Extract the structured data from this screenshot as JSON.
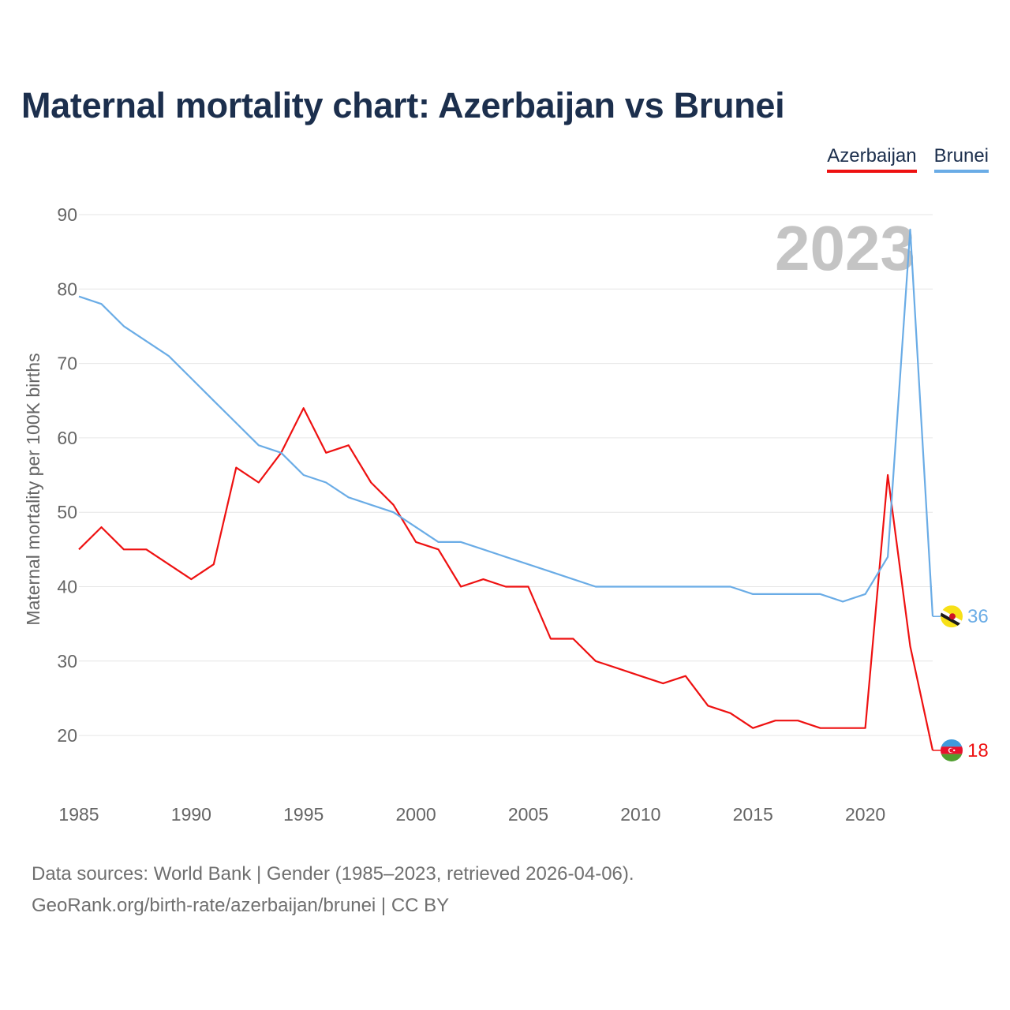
{
  "title": "Maternal mortality chart: Azerbaijan vs Brunei",
  "legend": {
    "azerbaijan": "Azerbaijan",
    "brunei": "Brunei"
  },
  "year_watermark": "2023",
  "colors": {
    "azerbaijan": "#ee1111",
    "brunei": "#6aace6",
    "title": "#1c2f4d",
    "grid": "#e6e6e6"
  },
  "source": {
    "line1": "Data sources: World Bank | Gender (1985–2023, retrieved 2026-04-06).",
    "line2": "GeoRank.org/birth-rate/azerbaijan/brunei | CC BY"
  },
  "chart_data": {
    "type": "line",
    "title": "Maternal mortality chart: Azerbaijan vs Brunei",
    "xlabel": "",
    "ylabel": "Maternal mortality per 100K births",
    "xlim": [
      1985,
      2023
    ],
    "ylim": [
      15,
      90
    ],
    "x_ticks": [
      1985,
      1990,
      1995,
      2000,
      2005,
      2010,
      2015,
      2020
    ],
    "y_ticks": [
      20,
      30,
      40,
      50,
      60,
      70,
      80,
      90
    ],
    "grid": true,
    "legend_position": "top-right",
    "x": [
      1985,
      1986,
      1987,
      1988,
      1989,
      1990,
      1991,
      1992,
      1993,
      1994,
      1995,
      1996,
      1997,
      1998,
      1999,
      2000,
      2001,
      2002,
      2003,
      2004,
      2005,
      2006,
      2007,
      2008,
      2009,
      2010,
      2011,
      2012,
      2013,
      2014,
      2015,
      2016,
      2017,
      2018,
      2019,
      2020,
      2021,
      2022,
      2023
    ],
    "series": [
      {
        "name": "Azerbaijan",
        "color": "#ee1111",
        "end_label": "18",
        "flag_icon": "azerbaijan-flag-icon",
        "values": [
          45,
          48,
          45,
          45,
          43,
          41,
          43,
          56,
          54,
          58,
          64,
          58,
          59,
          54,
          51,
          46,
          45,
          40,
          41,
          40,
          40,
          33,
          33,
          30,
          29,
          28,
          27,
          28,
          24,
          23,
          21,
          22,
          22,
          21,
          21,
          21,
          55,
          32,
          18
        ]
      },
      {
        "name": "Brunei",
        "color": "#6aace6",
        "end_label": "36",
        "flag_icon": "brunei-flag-icon",
        "values": [
          79,
          78,
          75,
          73,
          71,
          68,
          65,
          62,
          59,
          58,
          55,
          54,
          52,
          51,
          50,
          48,
          46,
          46,
          45,
          44,
          43,
          42,
          41,
          40,
          40,
          40,
          40,
          40,
          40,
          40,
          39,
          39,
          39,
          39,
          38,
          39,
          44,
          88,
          36
        ]
      }
    ]
  }
}
